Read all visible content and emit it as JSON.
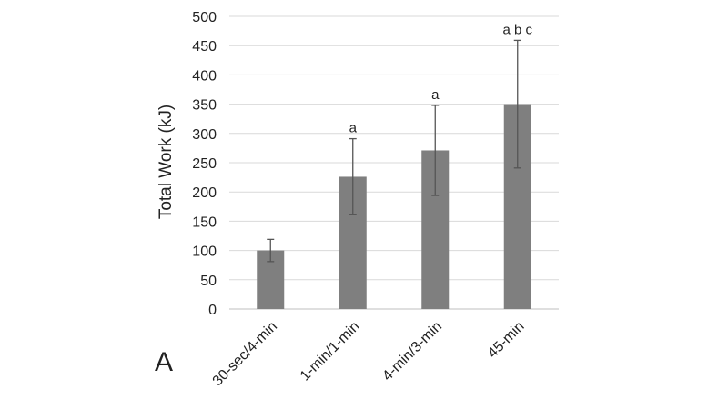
{
  "panel_label": "A",
  "chart_data": {
    "type": "bar",
    "ylabel": "Total Work (kJ)",
    "ylim": [
      0,
      500
    ],
    "yticks": [
      0,
      50,
      100,
      150,
      200,
      250,
      300,
      350,
      400,
      450,
      500
    ],
    "grid": true,
    "categories": [
      "30-sec/4-min",
      "1-min/1-min",
      "4-min/3-min",
      "45-min"
    ],
    "values": [
      100,
      226,
      271,
      350
    ],
    "errors": [
      19,
      65,
      77,
      109
    ],
    "annotations": [
      "",
      "a",
      "a",
      "a b c"
    ],
    "bar_color": "#7f7f7f",
    "grid_color": "#d9d9d9"
  }
}
